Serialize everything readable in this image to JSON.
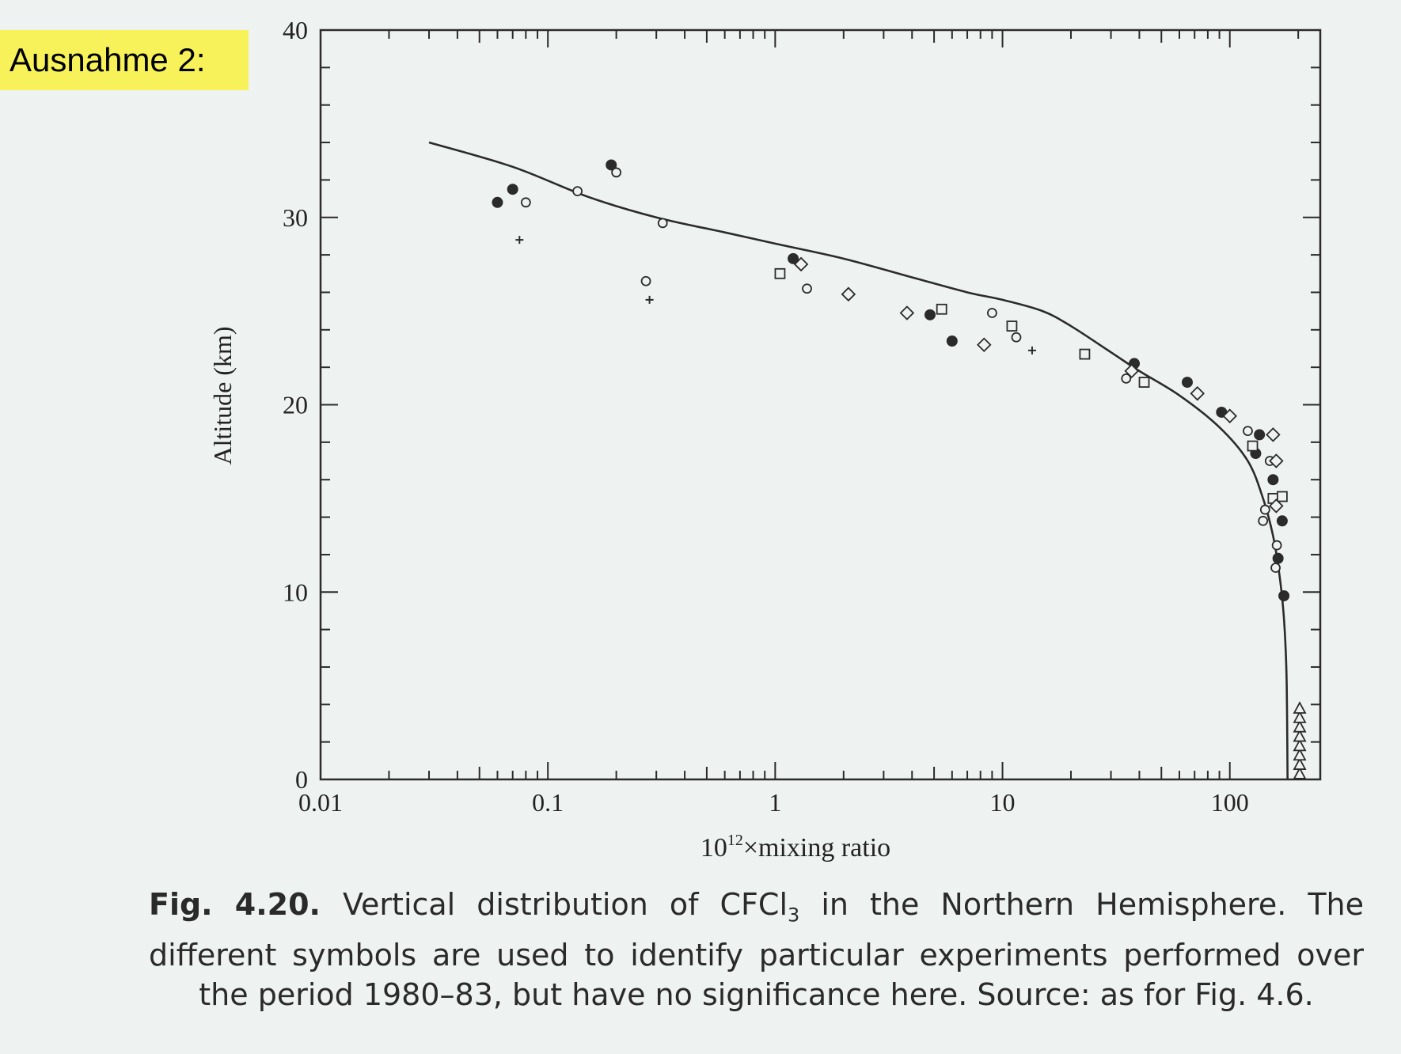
{
  "label": "Ausnahme 2:",
  "caption": {
    "lead": "Fig. 4.20.",
    "text_before_sub": "Vertical distribution of CFCl",
    "sub": "3",
    "text_after_sub": " in the Northern Hemisphere. The different symbols are used to identify particular experiments performed over the period 1980–83, but have no significance here. Source: as for Fig. 4.6."
  },
  "chart_data": {
    "type": "scatter",
    "title": "",
    "xlabel_base": "10",
    "xlabel_exp": "12",
    "xlabel_rest": "×mixing ratio",
    "ylabel": "Altitude (km)",
    "xscale": "log",
    "xlim": [
      0.01,
      250
    ],
    "ylim": [
      0,
      40
    ],
    "x_ticks": [
      {
        "value": 0.01,
        "label": "0.01"
      },
      {
        "value": 0.1,
        "label": "0.1"
      },
      {
        "value": 1,
        "label": "1"
      },
      {
        "value": 10,
        "label": "10"
      },
      {
        "value": 100,
        "label": "100"
      }
    ],
    "y_ticks": [
      {
        "value": 0,
        "label": "0"
      },
      {
        "value": 10,
        "label": "10"
      },
      {
        "value": 20,
        "label": "20"
      },
      {
        "value": 30,
        "label": "30"
      },
      {
        "value": 40,
        "label": "40"
      }
    ],
    "grid": false,
    "legend": "none",
    "model_curve": [
      [
        0.03,
        34
      ],
      [
        0.07,
        32.7
      ],
      [
        0.15,
        31.1
      ],
      [
        0.3,
        30.0
      ],
      [
        0.6,
        29.2
      ],
      [
        1,
        28.6
      ],
      [
        2,
        27.8
      ],
      [
        4,
        26.8
      ],
      [
        7,
        26.0
      ],
      [
        10,
        25.6
      ],
      [
        15,
        25.0
      ],
      [
        20,
        24.2
      ],
      [
        30,
        22.8
      ],
      [
        40,
        21.8
      ],
      [
        60,
        20.5
      ],
      [
        90,
        18.8
      ],
      [
        120,
        17.0
      ],
      [
        140,
        15.0
      ],
      [
        155,
        13.0
      ],
      [
        165,
        11.0
      ],
      [
        172,
        9.0
      ],
      [
        176,
        7.0
      ],
      [
        178,
        5.0
      ],
      [
        179,
        2.0
      ],
      [
        179.5,
        0
      ]
    ],
    "series": [
      {
        "marker": "filled-circle",
        "points": [
          [
            0.06,
            30.8
          ],
          [
            0.07,
            31.5
          ],
          [
            0.19,
            32.8
          ],
          [
            1.2,
            27.8
          ],
          [
            4.8,
            24.8
          ],
          [
            6,
            23.4
          ],
          [
            38,
            22.2
          ],
          [
            65,
            21.2
          ],
          [
            92,
            19.6
          ],
          [
            135,
            18.4
          ],
          [
            130,
            17.4
          ],
          [
            155,
            16.0
          ],
          [
            170,
            13.8
          ],
          [
            163,
            11.8
          ],
          [
            173,
            9.8
          ]
        ]
      },
      {
        "marker": "open-circle",
        "points": [
          [
            0.08,
            30.8
          ],
          [
            0.2,
            32.4
          ],
          [
            0.135,
            31.4
          ],
          [
            0.32,
            29.7
          ],
          [
            0.27,
            26.6
          ],
          [
            1.38,
            26.2
          ],
          [
            9,
            24.9
          ],
          [
            11.5,
            23.6
          ],
          [
            35,
            21.4
          ],
          [
            120,
            18.6
          ],
          [
            150,
            17.0
          ],
          [
            143,
            14.4
          ],
          [
            140,
            13.8
          ],
          [
            159,
            11.3
          ],
          [
            161,
            12.5
          ]
        ]
      },
      {
        "marker": "open-square",
        "points": [
          [
            1.05,
            27.0
          ],
          [
            5.4,
            25.1
          ],
          [
            11,
            24.2
          ],
          [
            23,
            22.7
          ],
          [
            42,
            21.2
          ],
          [
            126,
            17.8
          ],
          [
            155,
            15.0
          ],
          [
            170,
            15.1
          ]
        ]
      },
      {
        "marker": "open-diamond",
        "points": [
          [
            1.3,
            27.5
          ],
          [
            2.1,
            25.9
          ],
          [
            3.8,
            24.9
          ],
          [
            8.3,
            23.2
          ],
          [
            37,
            21.8
          ],
          [
            72,
            20.6
          ],
          [
            100,
            19.4
          ],
          [
            155,
            18.4
          ],
          [
            160,
            17.0
          ],
          [
            160,
            14.6
          ]
        ]
      },
      {
        "marker": "open-triangle",
        "points": [
          [
            203,
            0.3
          ],
          [
            203,
            0.8
          ],
          [
            203,
            1.3
          ],
          [
            203,
            1.8
          ],
          [
            203,
            2.3
          ],
          [
            203,
            2.8
          ],
          [
            203,
            3.3
          ],
          [
            203,
            3.8
          ]
        ]
      },
      {
        "marker": "plus",
        "points": [
          [
            0.075,
            28.8
          ],
          [
            0.28,
            25.6
          ],
          [
            13.5,
            22.9
          ]
        ]
      }
    ]
  }
}
